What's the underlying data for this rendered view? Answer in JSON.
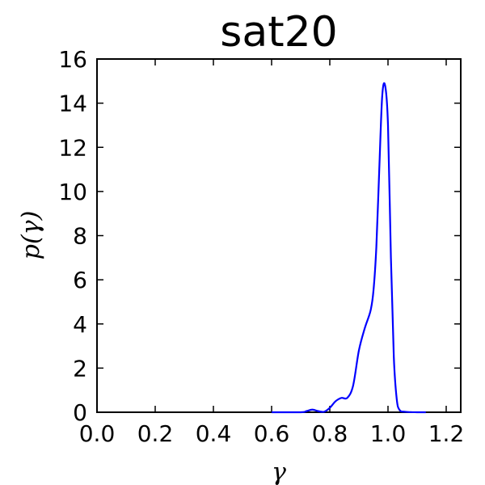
{
  "chart_data": {
    "type": "line",
    "title": "sat20",
    "xlabel": "γ",
    "ylabel": "p(γ)",
    "xlim": [
      0.0,
      1.25
    ],
    "ylim": [
      0,
      16
    ],
    "xticks": [
      "0.0",
      "0.2",
      "0.4",
      "0.6",
      "0.8",
      "1.0",
      "1.2"
    ],
    "yticks": [
      "0",
      "2",
      "4",
      "6",
      "8",
      "10",
      "12",
      "14",
      "16"
    ],
    "grid": false,
    "series": [
      {
        "color": "#0000ff",
        "x": [
          0.6,
          0.7,
          0.72,
          0.74,
          0.76,
          0.78,
          0.8,
          0.82,
          0.84,
          0.86,
          0.88,
          0.9,
          0.92,
          0.94,
          0.95,
          0.96,
          0.97,
          0.98,
          0.99,
          1.0,
          1.01,
          1.02,
          1.03,
          1.04,
          1.06,
          1.1,
          1.13
        ],
        "y": [
          0.0,
          0.0,
          0.05,
          0.12,
          0.05,
          0.02,
          0.2,
          0.5,
          0.65,
          0.65,
          1.2,
          2.8,
          3.8,
          4.6,
          5.5,
          7.5,
          11.0,
          14.3,
          14.8,
          13.0,
          7.0,
          2.5,
          0.6,
          0.1,
          0.02,
          0.0,
          0.0
        ]
      }
    ]
  }
}
